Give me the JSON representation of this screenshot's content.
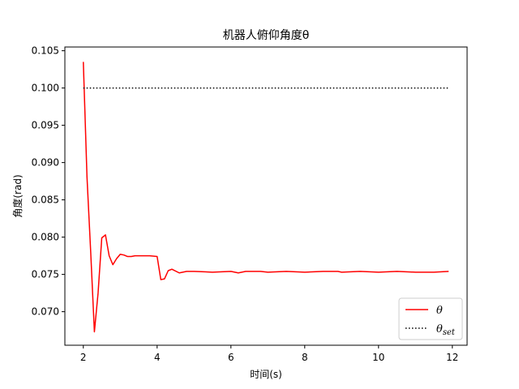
{
  "chart_data": {
    "type": "line",
    "title": "机器人俯仰角度θ",
    "xlabel": "时间(s)",
    "ylabel": "角度(rad)",
    "xlim": [
      1.5,
      12.4
    ],
    "ylim": [
      0.0655,
      0.1055
    ],
    "xticks": [
      2,
      4,
      6,
      8,
      10,
      12
    ],
    "yticks": [
      0.07,
      0.075,
      0.08,
      0.085,
      0.09,
      0.095,
      0.1,
      0.105
    ],
    "ytick_labels": [
      "0.070",
      "0.075",
      "0.080",
      "0.085",
      "0.090",
      "0.095",
      "0.100",
      "0.105"
    ],
    "legend_position": "lower-right",
    "grid": false,
    "series": [
      {
        "name": "θ",
        "color": "#ff0000",
        "style": "solid",
        "x": [
          2.0,
          2.1,
          2.2,
          2.3,
          2.4,
          2.5,
          2.6,
          2.7,
          2.8,
          2.9,
          3.0,
          3.1,
          3.2,
          3.3,
          3.4,
          3.6,
          3.8,
          4.0,
          4.1,
          4.2,
          4.3,
          4.4,
          4.6,
          4.8,
          5.0,
          5.5,
          6.0,
          6.2,
          6.4,
          6.8,
          7.0,
          7.5,
          8.0,
          8.5,
          8.9,
          9.0,
          9.5,
          10.0,
          10.5,
          11.0,
          11.5,
          11.9
        ],
        "y": [
          0.1035,
          0.088,
          0.078,
          0.0673,
          0.0725,
          0.0799,
          0.0803,
          0.0775,
          0.0763,
          0.0771,
          0.0777,
          0.0776,
          0.0774,
          0.0774,
          0.0775,
          0.0775,
          0.0775,
          0.0774,
          0.0743,
          0.0744,
          0.0755,
          0.0757,
          0.0752,
          0.0754,
          0.0754,
          0.0753,
          0.0754,
          0.0752,
          0.0754,
          0.0754,
          0.0753,
          0.0754,
          0.0753,
          0.0754,
          0.0754,
          0.0753,
          0.0754,
          0.0753,
          0.0754,
          0.0753,
          0.0753,
          0.0754
        ]
      },
      {
        "name": "θset",
        "name_base": "θ",
        "name_sub": "set",
        "color": "#000000",
        "style": "dotted",
        "x": [
          2.0,
          11.9
        ],
        "y": [
          0.1,
          0.1
        ]
      }
    ]
  }
}
